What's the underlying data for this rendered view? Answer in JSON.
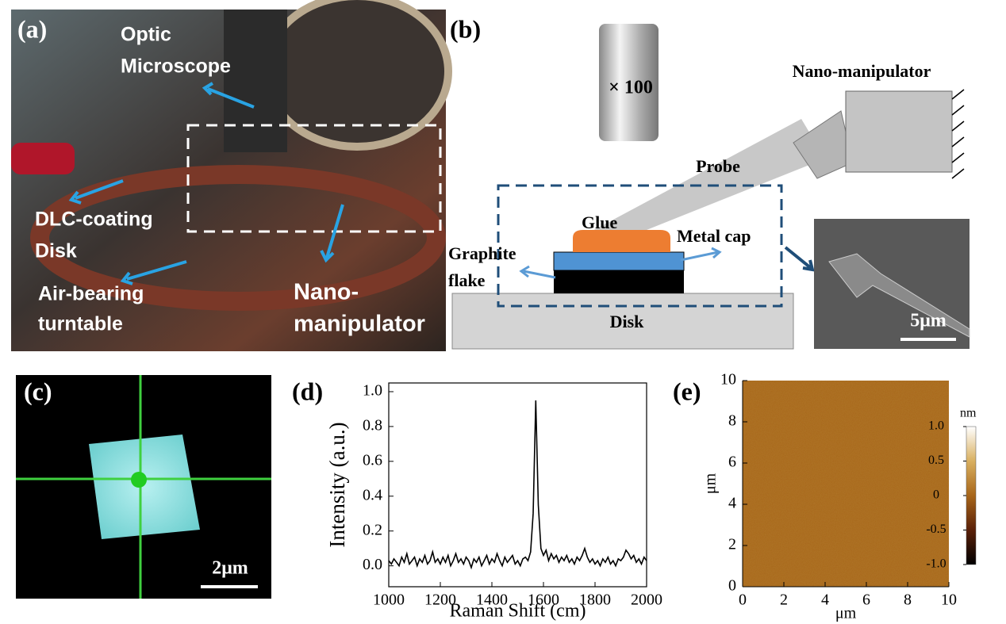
{
  "panel_a": {
    "label": "(a)",
    "optic_microscope": [
      "Optic",
      "Microscope"
    ],
    "dlc_disk": [
      "DLC-coating",
      "Disk"
    ],
    "air_bearing": [
      "Air-bearing",
      "turntable"
    ],
    "nano_manipulator": [
      "Nano-",
      "manipulator"
    ]
  },
  "panel_b": {
    "label": "(b)",
    "objective": "× 100",
    "nano_manipulator": "Nano-manipulator",
    "probe": "Probe",
    "glue": "Glue",
    "metal_cap": "Metal cap",
    "graphite_flake": [
      "Graphite",
      "flake"
    ],
    "disk": "Disk",
    "scale_bar": "5μm"
  },
  "panel_c": {
    "label": "(c)",
    "scale_bar": "2μm"
  },
  "chart_data": [
    {
      "type": "line",
      "panel_label": "(d)",
      "x_label": "Raman Shift (cm)",
      "y_label": "Intensity (a.u.)",
      "color": "#000000",
      "x": [
        1000,
        1010,
        1020,
        1030,
        1040,
        1050,
        1060,
        1070,
        1080,
        1090,
        1100,
        1110,
        1120,
        1130,
        1140,
        1150,
        1160,
        1170,
        1180,
        1190,
        1200,
        1210,
        1220,
        1230,
        1240,
        1250,
        1260,
        1270,
        1280,
        1290,
        1300,
        1310,
        1320,
        1330,
        1340,
        1350,
        1360,
        1370,
        1380,
        1390,
        1400,
        1410,
        1420,
        1430,
        1440,
        1450,
        1460,
        1470,
        1480,
        1490,
        1500,
        1510,
        1520,
        1530,
        1540,
        1550,
        1560,
        1570,
        1580,
        1590,
        1600,
        1610,
        1620,
        1630,
        1640,
        1650,
        1660,
        1670,
        1680,
        1690,
        1700,
        1710,
        1720,
        1730,
        1740,
        1750,
        1760,
        1770,
        1780,
        1790,
        1800,
        1810,
        1820,
        1830,
        1840,
        1850,
        1860,
        1870,
        1880,
        1890,
        1900,
        1910,
        1920,
        1930,
        1940,
        1950,
        1960,
        1970,
        1980,
        1990,
        2000
      ],
      "values": [
        0.03,
        0.01,
        0.04,
        0.02,
        0.0,
        0.05,
        0.02,
        0.07,
        0.01,
        0.03,
        0.05,
        0.0,
        0.04,
        0.02,
        0.06,
        0.01,
        0.03,
        0.08,
        0.02,
        0.04,
        0.01,
        0.05,
        0.02,
        0.06,
        0.0,
        0.03,
        0.07,
        0.02,
        0.04,
        0.01,
        0.05,
        0.03,
        -0.01,
        0.04,
        0.02,
        0.05,
        0.0,
        0.03,
        0.06,
        0.01,
        0.04,
        0.02,
        0.07,
        0.03,
        0.0,
        0.05,
        0.02,
        0.04,
        0.06,
        0.01,
        0.03,
        0.0,
        0.04,
        0.05,
        0.03,
        0.08,
        0.3,
        0.95,
        0.35,
        0.1,
        0.06,
        0.09,
        0.03,
        0.07,
        0.04,
        0.06,
        0.02,
        0.05,
        0.03,
        0.06,
        0.02,
        0.04,
        0.01,
        0.05,
        0.03,
        0.06,
        0.1,
        0.05,
        0.02,
        0.04,
        0.01,
        0.03,
        0.0,
        0.04,
        0.02,
        0.05,
        0.01,
        0.03,
        0.0,
        0.04,
        0.03,
        0.05,
        0.09,
        0.07,
        0.04,
        0.06,
        0.02,
        0.04,
        0.01,
        0.05,
        0.03
      ],
      "xlim": [
        1000,
        2000
      ],
      "xticks": [
        1000,
        1200,
        1400,
        1600,
        1800,
        2000
      ],
      "ylim": [
        -0.12,
        1.05
      ],
      "yticks": [
        {
          "value": 0,
          "label": "0.0"
        },
        0.2,
        0.4,
        0.6,
        0.8,
        {
          "value": 1,
          "label": "1.0"
        }
      ]
    },
    {
      "type": "heatmap",
      "panel_label": "(e)",
      "x_label": "μm",
      "y_label": "μm",
      "xlim": [
        0,
        10
      ],
      "xticks": [
        0,
        2,
        4,
        6,
        8,
        10
      ],
      "ylim": [
        0,
        10
      ],
      "yticks": [
        0,
        2,
        4,
        6,
        8,
        10
      ],
      "colorbar_label": "nm",
      "clim": [
        -1,
        1
      ],
      "cticks": [
        {
          "value": 1,
          "label": "1.0"
        },
        0.5,
        0,
        -0.5,
        {
          "value": -1,
          "label": "-1.0"
        }
      ]
    }
  ]
}
